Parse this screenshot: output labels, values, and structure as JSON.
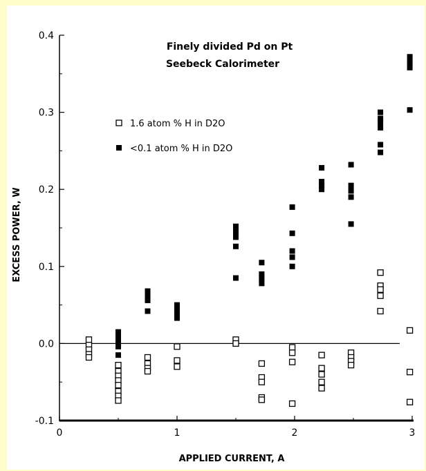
{
  "chart_data": {
    "type": "scatter",
    "title_lines": [
      "Finely divided Pd on Pt",
      "Seebeck Calorimeter"
    ],
    "xlabel": "APPLIED CURRENT, A",
    "ylabel": "EXCESS POWER, W",
    "xlim": [
      0,
      3
    ],
    "ylim": [
      -0.1,
      0.4
    ],
    "xticks": [
      "0",
      "1",
      "2",
      "3"
    ],
    "yticks": [
      "-0.1",
      "0.0",
      "0.1",
      "0.2",
      "0.3",
      "0.4"
    ],
    "grid": false,
    "legend_position": "upper-left",
    "series": [
      {
        "name": "1.6 atom % H in D2O",
        "marker": "open-square",
        "points": [
          [
            0.25,
            0.005
          ],
          [
            0.25,
            -0.002
          ],
          [
            0.25,
            -0.008
          ],
          [
            0.25,
            -0.014
          ],
          [
            0.25,
            -0.018
          ],
          [
            0.5,
            -0.028
          ],
          [
            0.5,
            -0.036
          ],
          [
            0.5,
            -0.042
          ],
          [
            0.5,
            -0.048
          ],
          [
            0.5,
            -0.054
          ],
          [
            0.5,
            -0.062
          ],
          [
            0.5,
            -0.068
          ],
          [
            0.5,
            -0.074
          ],
          [
            0.75,
            -0.018
          ],
          [
            0.75,
            -0.026
          ],
          [
            0.75,
            -0.032
          ],
          [
            0.75,
            -0.036
          ],
          [
            1.0,
            -0.004
          ],
          [
            1.0,
            -0.022
          ],
          [
            1.0,
            -0.03
          ],
          [
            1.5,
            0.005
          ],
          [
            1.5,
            0.0
          ],
          [
            1.72,
            -0.026
          ],
          [
            1.72,
            -0.044
          ],
          [
            1.72,
            -0.05
          ],
          [
            1.72,
            -0.07
          ],
          [
            1.72,
            -0.073
          ],
          [
            1.98,
            -0.005
          ],
          [
            1.98,
            -0.012
          ],
          [
            1.98,
            -0.024
          ],
          [
            1.98,
            -0.078
          ],
          [
            2.23,
            -0.015
          ],
          [
            2.23,
            -0.032
          ],
          [
            2.23,
            -0.04
          ],
          [
            2.23,
            -0.05
          ],
          [
            2.23,
            -0.058
          ],
          [
            2.48,
            -0.012
          ],
          [
            2.48,
            -0.018
          ],
          [
            2.48,
            -0.023
          ],
          [
            2.48,
            -0.028
          ],
          [
            2.73,
            0.092
          ],
          [
            2.73,
            0.075
          ],
          [
            2.73,
            0.07
          ],
          [
            2.73,
            0.062
          ],
          [
            2.73,
            0.042
          ],
          [
            2.98,
            0.017
          ],
          [
            2.98,
            -0.037
          ],
          [
            2.98,
            -0.076
          ]
        ]
      },
      {
        "name": "<0.1 atom % H in D2O",
        "marker": "filled-square",
        "points": [
          [
            0.5,
            0.015
          ],
          [
            0.5,
            0.008
          ],
          [
            0.5,
            0.002
          ],
          [
            0.5,
            -0.004
          ],
          [
            0.5,
            -0.015
          ],
          [
            0.75,
            0.068
          ],
          [
            0.75,
            0.062
          ],
          [
            0.75,
            0.056
          ],
          [
            0.75,
            0.042
          ],
          [
            1.0,
            0.05
          ],
          [
            1.0,
            0.045
          ],
          [
            1.0,
            0.038
          ],
          [
            1.0,
            0.033
          ],
          [
            1.5,
            0.152
          ],
          [
            1.5,
            0.145
          ],
          [
            1.5,
            0.138
          ],
          [
            1.5,
            0.126
          ],
          [
            1.5,
            0.085
          ],
          [
            1.72,
            0.105
          ],
          [
            1.72,
            0.09
          ],
          [
            1.72,
            0.085
          ],
          [
            1.72,
            0.078
          ],
          [
            1.98,
            0.177
          ],
          [
            1.98,
            0.143
          ],
          [
            1.98,
            0.12
          ],
          [
            1.98,
            0.112
          ],
          [
            1.98,
            0.1
          ],
          [
            2.23,
            0.228
          ],
          [
            2.23,
            0.21
          ],
          [
            2.23,
            0.205
          ],
          [
            2.23,
            0.2
          ],
          [
            2.48,
            0.232
          ],
          [
            2.48,
            0.205
          ],
          [
            2.48,
            0.198
          ],
          [
            2.48,
            0.19
          ],
          [
            2.48,
            0.155
          ],
          [
            2.73,
            0.3
          ],
          [
            2.73,
            0.292
          ],
          [
            2.73,
            0.287
          ],
          [
            2.73,
            0.28
          ],
          [
            2.73,
            0.258
          ],
          [
            2.73,
            0.248
          ],
          [
            2.98,
            0.372
          ],
          [
            2.98,
            0.365
          ],
          [
            2.98,
            0.358
          ],
          [
            2.98,
            0.303
          ]
        ]
      }
    ]
  }
}
